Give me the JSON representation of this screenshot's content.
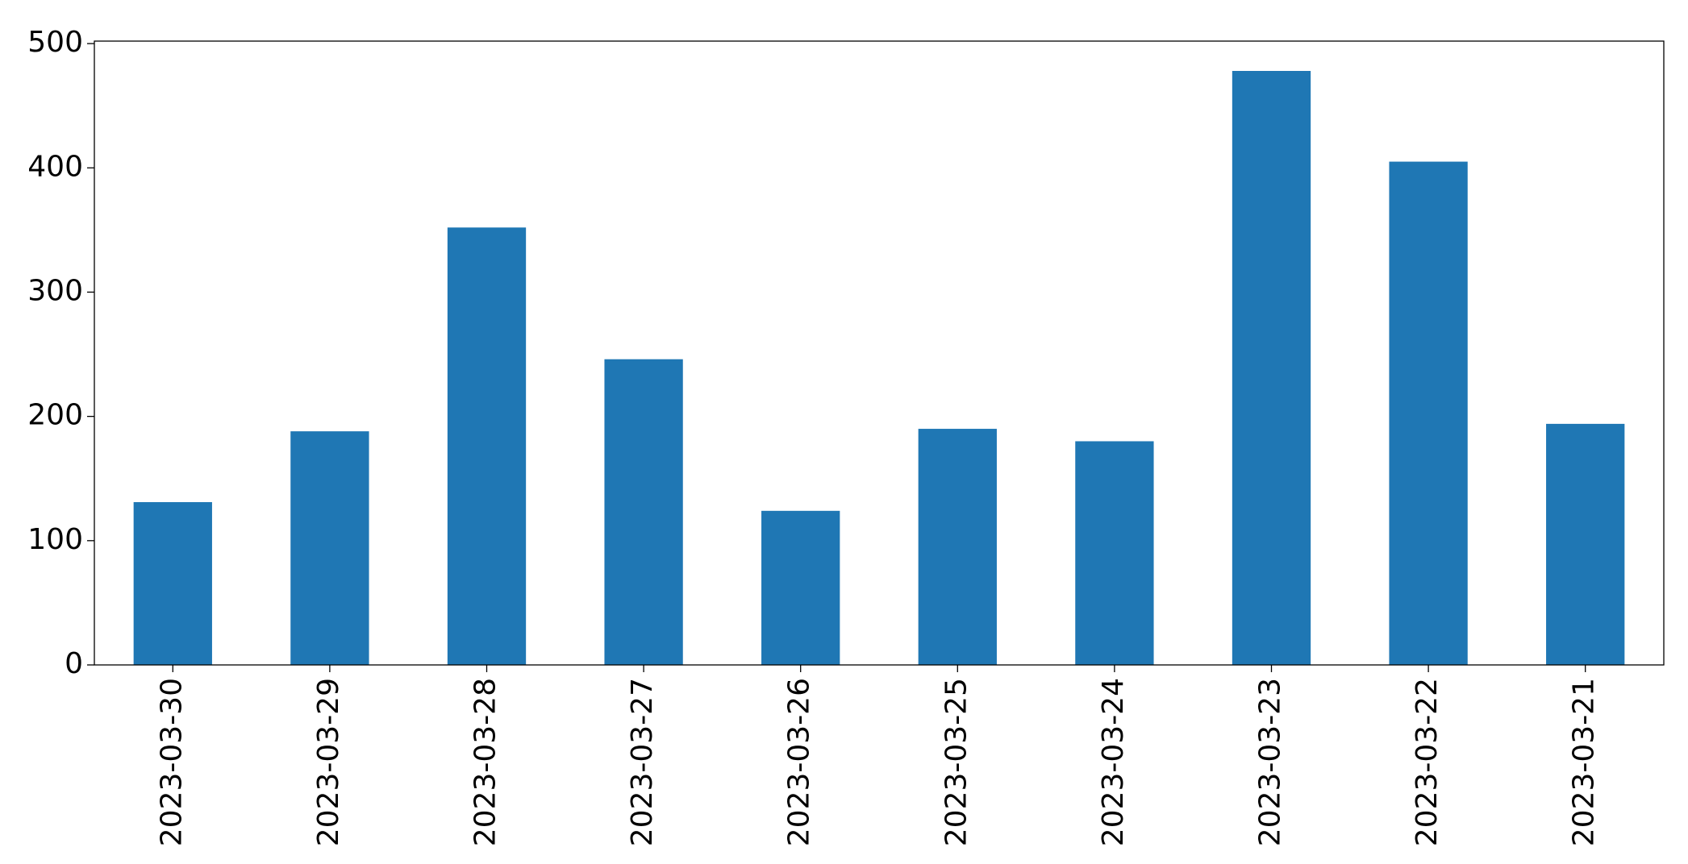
{
  "chart_data": {
    "type": "bar",
    "categories": [
      "2023-03-30",
      "2023-03-29",
      "2023-03-28",
      "2023-03-27",
      "2023-03-26",
      "2023-03-25",
      "2023-03-24",
      "2023-03-23",
      "2023-03-22",
      "2023-03-21"
    ],
    "values": [
      131,
      188,
      352,
      246,
      124,
      190,
      180,
      478,
      405,
      194
    ],
    "color": "#1f77b4",
    "ylim": [
      0,
      502
    ],
    "yticks": [
      0,
      100,
      200,
      300,
      400,
      500
    ],
    "grid": false
  }
}
